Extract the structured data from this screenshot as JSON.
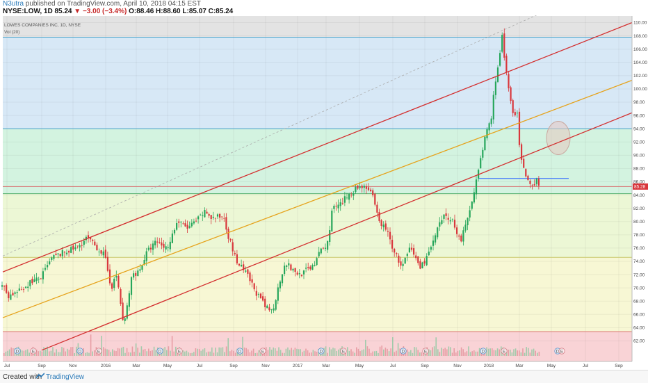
{
  "header": {
    "author": "N3utra",
    "published": "published on TradingView.com, April 10, 2018 04:15 EST",
    "symbol": "NYSE:LOW, 1D",
    "last": "85.24",
    "change": "▼ −3.00 (−3.4%)",
    "ohlc": "O:88.46 H:88.60 L:85.07 C:85.24"
  },
  "chart_data": {
    "type": "candlestick",
    "title": "LOWES COMPANIES INC, 1D, NYSE",
    "indicator": "Vol (20)",
    "last_price_label": "85.28",
    "ylim": [
      61,
      111
    ],
    "y_ticks": [
      "110.00",
      "108.00",
      "106.00",
      "104.00",
      "102.00",
      "100.00",
      "98.00",
      "96.00",
      "94.00",
      "92.00",
      "90.00",
      "88.00",
      "86.00",
      "84.00",
      "82.00",
      "80.00",
      "78.00",
      "76.00",
      "74.00",
      "72.00",
      "70.00",
      "68.00",
      "66.00",
      "64.00",
      "62.00"
    ],
    "x_ticks": [
      "Jul",
      "Sep",
      "Nov",
      "2016",
      "Mar",
      "May",
      "Jul",
      "Sep",
      "Nov",
      "2017",
      "Mar",
      "May",
      "Jul",
      "Sep",
      "Nov",
      "2018",
      "Mar",
      "May",
      "Jul",
      "Sep"
    ],
    "price_path": [
      [
        0,
        71.0
      ],
      [
        12,
        68.8
      ],
      [
        28,
        69.5
      ],
      [
        45,
        71.0
      ],
      [
        58,
        71.4
      ],
      [
        75,
        74.5
      ],
      [
        95,
        75.5
      ],
      [
        110,
        76.0
      ],
      [
        125,
        77.5
      ],
      [
        135,
        76.5
      ],
      [
        150,
        75.0
      ],
      [
        160,
        70.0
      ],
      [
        168,
        72.0
      ],
      [
        178,
        64.0
      ],
      [
        190,
        72.0
      ],
      [
        200,
        72.5
      ],
      [
        212,
        75.5
      ],
      [
        225,
        77.0
      ],
      [
        240,
        76.0
      ],
      [
        255,
        80.0
      ],
      [
        270,
        79.0
      ],
      [
        282,
        80.0
      ],
      [
        295,
        81.5
      ],
      [
        305,
        80.5
      ],
      [
        322,
        80.8
      ],
      [
        328,
        78.0
      ],
      [
        340,
        74.0
      ],
      [
        355,
        72.0
      ],
      [
        370,
        69.0
      ],
      [
        382,
        67.0
      ],
      [
        392,
        66.5
      ],
      [
        400,
        70.0
      ],
      [
        410,
        74.0
      ],
      [
        422,
        72.5
      ],
      [
        432,
        72.0
      ],
      [
        445,
        73.0
      ],
      [
        455,
        74.0
      ],
      [
        462,
        76.0
      ],
      [
        470,
        76.0
      ],
      [
        478,
        82.0
      ],
      [
        490,
        82.5
      ],
      [
        500,
        84.0
      ],
      [
        512,
        85.0
      ],
      [
        525,
        85.5
      ],
      [
        535,
        84.0
      ],
      [
        545,
        80.0
      ],
      [
        555,
        79.0
      ],
      [
        565,
        76.0
      ],
      [
        578,
        73.0
      ],
      [
        590,
        76.0
      ],
      [
        605,
        73.0
      ],
      [
        620,
        76.0
      ],
      [
        630,
        79.0
      ],
      [
        640,
        81.0
      ],
      [
        652,
        80.0
      ],
      [
        662,
        77.0
      ],
      [
        672,
        80.0
      ],
      [
        680,
        84.0
      ],
      [
        690,
        88.5
      ],
      [
        700,
        94.0
      ],
      [
        706,
        95.0
      ],
      [
        712,
        101.0
      ],
      [
        718,
        104.5
      ],
      [
        722,
        108.0
      ],
      [
        726,
        104.0
      ],
      [
        730,
        101.0
      ],
      [
        736,
        97.0
      ],
      [
        744,
        96.0
      ],
      [
        748,
        90.0
      ],
      [
        756,
        86.5
      ],
      [
        764,
        85.0
      ],
      [
        772,
        86.5
      ],
      [
        777,
        85.2
      ]
    ],
    "volume_events_D": [
      25,
      115,
      230,
      345,
      462,
      580,
      695,
      802
    ],
    "earnings_E": [
      48,
      142,
      258,
      378,
      494,
      612,
      725,
      808
    ],
    "levels": [
      {
        "name": "upper-hline",
        "price": 107.8
      },
      {
        "name": "mid-hline",
        "price": 94.0
      },
      {
        "name": "ref-hline",
        "price": 85.28
      },
      {
        "name": "support-hline",
        "price": 84.2
      },
      {
        "name": "low-hline",
        "price": 74.6
      },
      {
        "name": "vol-zone-line",
        "price": 63.4
      }
    ],
    "zone_colors": {
      "blue": "#d7e8f6",
      "green": "#d3f3e0",
      "yellowgreen": "#ecf7d5",
      "yellow": "#f7f7d4",
      "red": "#f9d3d6",
      "grey": "#e3e3e3"
    },
    "channel_colors": {
      "red": "#d32f2f",
      "orange": "#e6a21a",
      "blue": "#2962ff",
      "dashed": "#aaaaaa"
    }
  },
  "footer": {
    "created": "Created with",
    "brand": "TradingView"
  }
}
